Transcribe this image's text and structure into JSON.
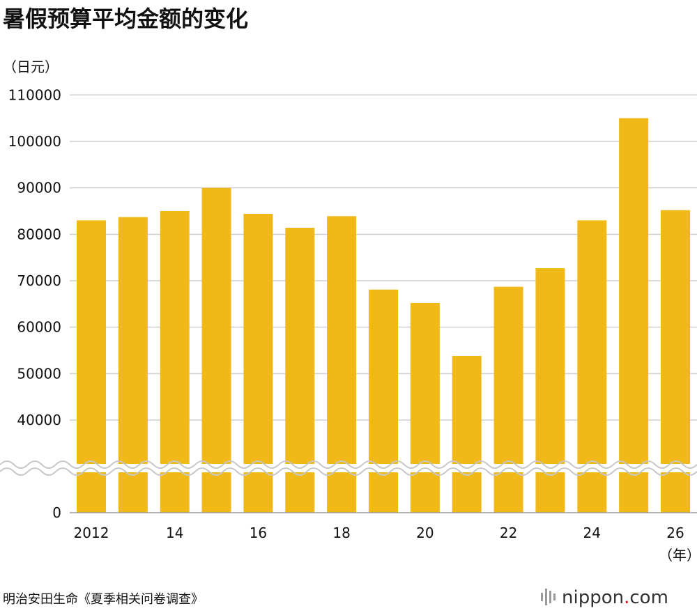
{
  "chart_data": {
    "type": "bar",
    "title": "暑假预算平均金额的变化",
    "ylabel": "（日元）",
    "xlabel": "（年）",
    "categories": [
      "2012",
      "2013",
      "2014",
      "2015",
      "2016",
      "2017",
      "2018",
      "2019",
      "2020",
      "2021",
      "2022",
      "2023",
      "2024",
      "2025",
      "2026"
    ],
    "x_tick_labels": [
      "2012",
      "",
      "14",
      "",
      "16",
      "",
      "18",
      "",
      "20",
      "",
      "22",
      "",
      "24",
      "",
      "26"
    ],
    "values": [
      83000,
      83700,
      85000,
      90000,
      84400,
      81400,
      83900,
      68100,
      65200,
      53800,
      68700,
      72700,
      83000,
      105000,
      85200
    ],
    "yticks": [
      "110000",
      "100000",
      "90000",
      "80000",
      "70000",
      "60000",
      "50000",
      "40000",
      "0"
    ],
    "ytick_values": [
      110000,
      100000,
      90000,
      80000,
      70000,
      60000,
      50000,
      40000,
      0
    ],
    "ylim": [
      0,
      110000
    ],
    "axis_break": true,
    "grid": true,
    "bar_color": "#f0b917"
  },
  "footer": {
    "source": "明治安田生命《夏季相关问卷调查》",
    "brand_text": "nippon",
    "brand_dot": ".",
    "brand_domain": "com",
    "brand_dot_color": "#e60012"
  }
}
